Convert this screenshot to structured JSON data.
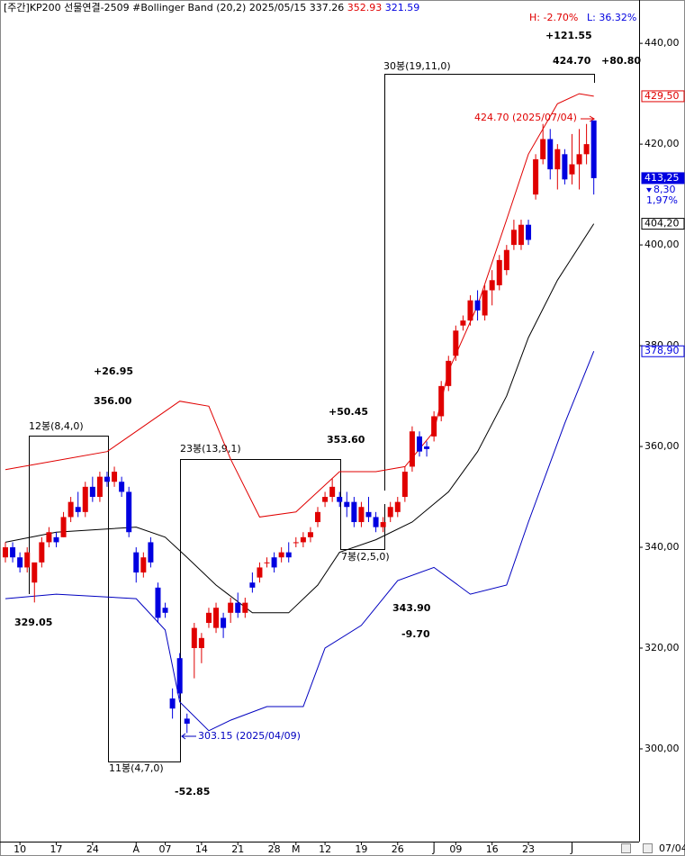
{
  "chart_data": {
    "type": "candlestick",
    "header": {
      "title": "[주간]KP200 선물연결-2509 #Bollinger Band  (20,2) 2025/05/15",
      "values": [
        337.26,
        352.93,
        321.59
      ],
      "high": "H: -2.70%",
      "low": "L: 36.32%"
    },
    "last_date": "07/04",
    "categories": [
      null,
      null,
      "10",
      null,
      null,
      null,
      null,
      "17",
      null,
      null,
      null,
      null,
      "24",
      null,
      null,
      null,
      null,
      null,
      "A",
      null,
      null,
      null,
      "07",
      null,
      null,
      null,
      null,
      "14",
      null,
      null,
      null,
      null,
      "21",
      null,
      null,
      null,
      null,
      "28",
      null,
      null,
      "M",
      null,
      null,
      null,
      "12",
      null,
      null,
      null,
      null,
      "19",
      null,
      null,
      null,
      null,
      "26",
      null,
      null,
      null,
      null,
      "J",
      null,
      null,
      "09",
      null,
      null,
      null,
      null,
      "16",
      null,
      null,
      null,
      null,
      "23",
      null,
      null,
      null,
      null,
      null,
      "J",
      null,
      null,
      null
    ],
    "open": [
      338,
      340,
      338,
      336,
      333,
      337,
      341,
      342,
      342,
      346,
      348,
      347,
      352,
      350,
      354,
      353,
      353,
      351,
      339,
      335,
      341,
      332,
      328,
      310,
      318,
      306,
      320,
      320,
      325,
      324,
      326,
      327,
      329,
      327,
      333,
      334,
      337,
      338,
      338,
      339,
      341,
      341,
      342,
      345,
      349,
      350,
      350,
      349,
      349,
      345,
      347,
      346,
      344,
      346,
      347,
      350,
      356,
      362,
      360,
      362,
      366,
      372,
      378,
      384,
      385,
      389,
      386,
      391,
      392,
      395,
      400,
      400,
      404,
      410,
      417,
      421,
      415,
      418,
      414,
      416,
      418,
      424.7
    ],
    "high": [
      341,
      341,
      339,
      340,
      336,
      342,
      344,
      343,
      347,
      350,
      351,
      353,
      354,
      355,
      355,
      356,
      354,
      352,
      340,
      339,
      342,
      333,
      329,
      312,
      319,
      307,
      325,
      323,
      328,
      329,
      327,
      330,
      331,
      330,
      335,
      337,
      338,
      339,
      340,
      341,
      342,
      343,
      344,
      348,
      351,
      353.6,
      351,
      351,
      350,
      349,
      350,
      347,
      346,
      349,
      350,
      356,
      364,
      363,
      361,
      367,
      373,
      378,
      384,
      386,
      390,
      391,
      392,
      395,
      398,
      400,
      405,
      405,
      405,
      418,
      424,
      423,
      420,
      419,
      422,
      423,
      424,
      424.7
    ],
    "low": [
      337,
      337,
      335,
      335,
      329.05,
      336,
      340,
      340,
      342,
      345,
      346,
      346,
      349,
      349,
      352,
      352,
      350,
      342,
      333,
      334,
      336,
      325,
      326,
      306,
      310,
      303.15,
      314,
      317,
      324,
      323,
      322,
      325,
      326,
      326,
      331,
      333,
      336,
      335,
      337,
      337,
      340,
      340,
      341,
      344,
      348,
      349,
      348,
      346,
      344,
      344,
      345,
      343,
      343,
      345,
      346,
      349,
      355,
      358,
      358,
      361,
      365,
      371,
      377,
      383,
      384,
      385,
      385,
      388,
      391,
      394,
      399,
      399,
      400,
      409,
      416,
      413,
      411,
      412,
      412,
      411,
      416,
      410
    ],
    "close": [
      340,
      338,
      336,
      339,
      337,
      341,
      343,
      341,
      346,
      349,
      347,
      352,
      350,
      354,
      353,
      355,
      351,
      343,
      335,
      338,
      337,
      326,
      327,
      308,
      311,
      305,
      324,
      322,
      327,
      328,
      324,
      329,
      327,
      329,
      332,
      336,
      337,
      336,
      339,
      338,
      341,
      342,
      343,
      347,
      350,
      352,
      349,
      348,
      345,
      348,
      346,
      344,
      345,
      348,
      349,
      355,
      363,
      359,
      359.5,
      366,
      372,
      377,
      383,
      385,
      389,
      387,
      391,
      393,
      397,
      399,
      403,
      404,
      401,
      417,
      421,
      415,
      419,
      413,
      416,
      418,
      420,
      413.25
    ],
    "up_color": "#e00000",
    "down_color": "#0000e0",
    "series": [
      {
        "color": "#e00000",
        "x": [
          0,
          14,
          18,
          24,
          28,
          31,
          35,
          40,
          46,
          51,
          55,
          59,
          61,
          65,
          69,
          72,
          76,
          79,
          81
        ],
        "values": [
          355.4,
          359,
          363,
          369,
          368,
          357.5,
          346,
          347,
          355,
          355,
          356,
          363,
          375,
          388,
          405,
          418,
          428,
          430,
          429.5
        ]
      },
      {
        "color": "#000000",
        "x": [
          0,
          7,
          18,
          22,
          25,
          29,
          34,
          39,
          43,
          46,
          51,
          56,
          61,
          65,
          69,
          72,
          76,
          81
        ],
        "values": [
          341,
          343,
          344,
          342,
          338,
          332.5,
          327,
          327,
          332.5,
          339,
          341.5,
          345,
          351,
          359,
          370,
          381.6,
          393,
          404.2
        ]
      },
      {
        "color": "#0000c0",
        "x": [
          0,
          7,
          18,
          22,
          24,
          28,
          31,
          36,
          41,
          44,
          49,
          54,
          59,
          64,
          69,
          72,
          77,
          81
        ],
        "values": [
          329.8,
          330.7,
          329.8,
          323.6,
          309.3,
          303.6,
          305.7,
          308.4,
          308.4,
          320,
          324.5,
          333.4,
          336,
          330.7,
          332.5,
          345,
          364.6,
          378.9
        ]
      }
    ],
    "ylim": [
      281.6,
      448.6
    ],
    "yticks": [
      {
        "value": 300,
        "label": "300,00"
      },
      {
        "value": 320,
        "label": "320,00"
      },
      {
        "value": 340,
        "label": "340,00"
      },
      {
        "value": 360,
        "label": "360,00"
      },
      {
        "value": 380,
        "label": "380,00"
      },
      {
        "value": 400,
        "label": "400,00"
      },
      {
        "value": 420,
        "label": "420,00"
      },
      {
        "value": 440,
        "label": "440,00"
      }
    ],
    "price_labels": [
      {
        "value": 429.5,
        "label": "429,50",
        "color": "#e00000",
        "filled": false
      },
      {
        "value": 413.25,
        "label": "413,25",
        "color": "#0000e0",
        "filled": true
      },
      {
        "value": 404.2,
        "label": "404,20",
        "color": "#000000",
        "filled": false
      },
      {
        "value": 378.9,
        "label": "378,90",
        "color": "#0000e0",
        "filled": false
      }
    ],
    "change": "8,30",
    "change_pct": "1,97%",
    "annotations": [
      "+121.55",
      "424.70",
      "+80.80",
      "30봉(19,11,0)",
      "424.70 (2025/07/04)",
      "+26.95",
      "356.00",
      "+50.45",
      "12봉(8,4,0)",
      "353.60",
      "23봉(13,9,1)",
      "7봉(2,5,0)",
      "343.90",
      "329.05",
      "-9.70",
      "303.15 (2025/04/09)",
      "11봉(4,7,0)",
      "-52.85"
    ]
  }
}
